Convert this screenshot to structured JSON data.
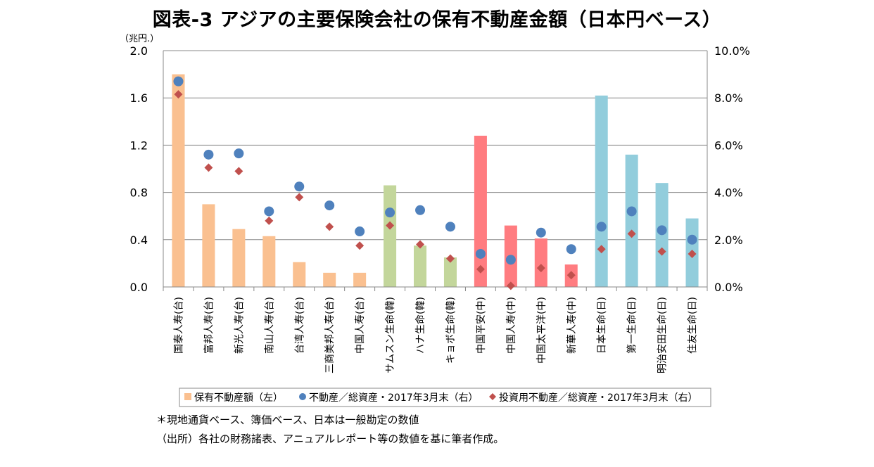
{
  "chart_data": {
    "type": "bar",
    "title": "図表-3  アジアの主要保険会社の保有不動産金額（日本円ベース）",
    "y_left_unit": "（兆円.）",
    "ylim_left": [
      0,
      2.0
    ],
    "yticks_left": [
      "0.0",
      "0.4",
      "0.8",
      "1.2",
      "1.6",
      "2.0"
    ],
    "ylim_right": [
      0,
      10.0
    ],
    "yticks_right": [
      "0.0%",
      "2.0%",
      "4.0%",
      "6.0%",
      "8.0%",
      "10.0%"
    ],
    "grid": true,
    "legend_position": "bottom",
    "categories": [
      "国泰人寿(台)",
      "富邦人寿(台)",
      "新光人寿(台)",
      "南山人寿(台)",
      "台湾人寿(台)",
      "三商美邦人寿(台)",
      "中国人寿(台)",
      "サムスン生命(韓)",
      "ハナ生命(韓)",
      "キョボ生命(韓)",
      "中国平安(中)",
      "中国人寿(中)",
      "中国太平洋(中)",
      "新華人寿(中)",
      "日本生命(日)",
      "第一生命(日)",
      "明治安田生命(日)",
      "住友生命(日)"
    ],
    "bar_colors": [
      "#FAC090",
      "#FAC090",
      "#FAC090",
      "#FAC090",
      "#FAC090",
      "#FAC090",
      "#FAC090",
      "#C3D69B",
      "#C3D69B",
      "#C3D69B",
      "#FF7C80",
      "#FF7C80",
      "#FF7C80",
      "#FF7C80",
      "#92CDDC",
      "#92CDDC",
      "#92CDDC",
      "#92CDDC"
    ],
    "series": [
      {
        "name": "保有不動産額（左）",
        "type": "bar",
        "axis": "left",
        "color": "#FAC090",
        "values": [
          1.8,
          0.7,
          0.49,
          0.43,
          0.21,
          0.12,
          0.12,
          0.86,
          0.35,
          0.25,
          1.28,
          0.52,
          0.41,
          0.19,
          1.62,
          1.12,
          0.88,
          0.58
        ]
      },
      {
        "name": "不動産／総資産・2017年3月末（右）",
        "type": "scatter",
        "marker": "circle",
        "axis": "right",
        "color": "#4F81BD",
        "values": [
          8.7,
          5.6,
          5.65,
          3.2,
          4.25,
          3.45,
          2.35,
          3.15,
          3.25,
          2.55,
          1.4,
          1.15,
          2.3,
          1.6,
          2.55,
          3.2,
          2.4,
          2.0
        ]
      },
      {
        "name": "投資用不動産／総資産・2017年3月末（右）",
        "type": "scatter",
        "marker": "diamond",
        "axis": "right",
        "color": "#C0504D",
        "values": [
          8.15,
          5.05,
          4.9,
          2.8,
          3.8,
          2.55,
          1.75,
          2.6,
          1.8,
          1.2,
          0.75,
          0.05,
          0.8,
          0.5,
          1.6,
          2.25,
          1.5,
          1.4
        ]
      }
    ]
  },
  "notes": [
    "＊現地通貨ベース、簿価ベース、日本は一般勘定の数値",
    "（出所）各社の財務諸表、アニュアルレポート等の数値を基に筆者作成。"
  ]
}
